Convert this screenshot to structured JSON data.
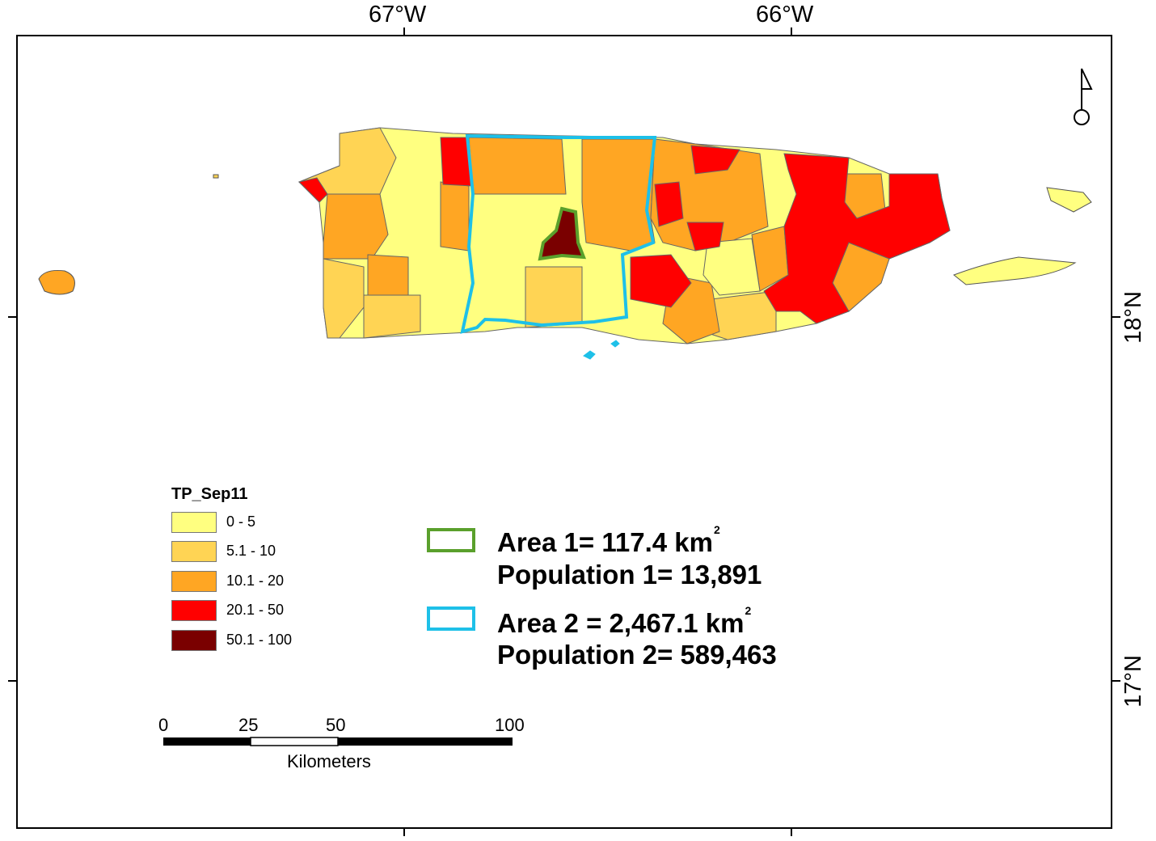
{
  "graticule": {
    "lon_labels": [
      "67°W",
      "66°W"
    ],
    "lat_labels": [
      "18°N",
      "17°N"
    ]
  },
  "legend": {
    "title": "TP_Sep11",
    "classes": [
      {
        "label": "0 - 5",
        "color": "#ffff80"
      },
      {
        "label": "5.1 - 10",
        "color": "#ffd454"
      },
      {
        "label": "10.1 - 20",
        "color": "#ffa623"
      },
      {
        "label": "20.1 - 50",
        "color": "#ff0000"
      },
      {
        "label": "50.1 - 100",
        "color": "#7a0000"
      }
    ]
  },
  "areas": [
    {
      "area_text": "Area 1= 117.4 km",
      "sup": "2",
      "population_text": "Population 1= 13,891",
      "outline_color": "#5aa02c"
    },
    {
      "area_text": "Area 2 = 2,467.1 km",
      "sup": "2",
      "population_text": "Population 2= 589,463",
      "outline_color": "#1ec0e8"
    }
  ],
  "scale_bar": {
    "ticks": [
      "0",
      "25",
      "50",
      "100"
    ],
    "unit": "Kilometers"
  },
  "north_arrow": {
    "icon": "north-arrow-icon"
  }
}
